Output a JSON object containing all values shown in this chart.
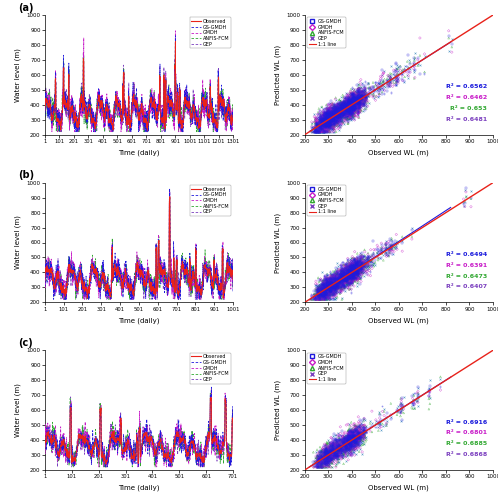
{
  "scenarios": [
    {
      "label": "a",
      "n_time": 1301,
      "x_ticks": [
        1,
        101,
        201,
        301,
        401,
        501,
        601,
        701,
        801,
        901,
        1001,
        1101,
        1201,
        1301
      ],
      "r2": [
        0.6562,
        0.6462,
        0.653,
        0.6481
      ]
    },
    {
      "label": "b",
      "n_time": 1021,
      "x_ticks": [
        1,
        101,
        201,
        301,
        401,
        501,
        601,
        701,
        801,
        901,
        1001
      ],
      "r2": [
        0.6494,
        0.6391,
        0.6473,
        0.6407
      ]
    },
    {
      "label": "c",
      "n_time": 751,
      "x_ticks": [
        1,
        101,
        201,
        301,
        401,
        501,
        601,
        701
      ],
      "r2": [
        0.6916,
        0.6801,
        0.6885,
        0.6868
      ]
    }
  ],
  "ylim_time": [
    200,
    1000
  ],
  "ylim_scatter": [
    200,
    1000
  ],
  "xlim_scatter": [
    200,
    1000
  ],
  "yticks_time": [
    200,
    300,
    400,
    500,
    600,
    700,
    800,
    900,
    1000
  ],
  "yticks_scatter": [
    200,
    300,
    400,
    500,
    600,
    700,
    800,
    900,
    1000
  ],
  "xticks_scatter": [
    200,
    300,
    400,
    500,
    600,
    700,
    800,
    900,
    1000
  ],
  "colors": {
    "observed": "#e8221a",
    "gsgmdh": "#1f1adc",
    "gmdh": "#c71bc7",
    "anfis": "#31a831",
    "gep": "#7b3fbf"
  },
  "r2_colors": [
    "#1a1adc",
    "#c81bc8",
    "#31a831",
    "#7b3fbf"
  ]
}
